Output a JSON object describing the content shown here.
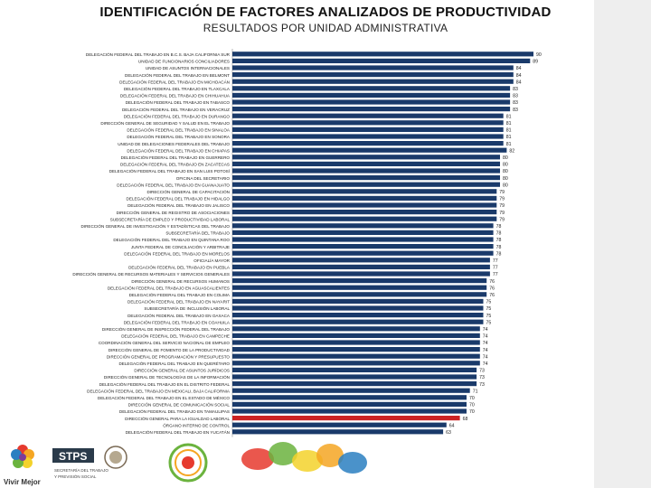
{
  "header": {
    "title": "IDENTIFICACIÓN DE FACTORES ANALIZADOS DE PRODUCTIVIDAD",
    "subtitle": "RESULTADOS POR UNIDAD ADMINISTRATIVA"
  },
  "colors": {
    "bar": "#1a3a6a",
    "bar_highlight": "#cc2222",
    "side_strip": "#eeeeee"
  },
  "chart_data": {
    "type": "bar",
    "orientation": "horizontal",
    "title": "RESULTADOS POR UNIDAD ADMINISTRATIVA",
    "categories": [
      "DELEGACIÓN FEDERAL DEL TRABAJO EN B.C.S. BAJA CALIFORNIA SUR",
      "UNIDAD DE FUNCIONARIOS CONCILIADORES",
      "UNIDAD DE ASUNTOS INTERNACIONALES",
      "DELEGACIÓN FEDERAL DEL TRABAJO EN BELMONT",
      "DELEGACIÓN FEDERAL DEL TRABAJO EN MICHOACÁN",
      "DELEGACIÓN FEDERAL DEL TRABAJO EN TLAXCALA",
      "DELEGACIÓN FEDERAL DEL TRABAJO EN CHIHUAHUA",
      "DELEGACIÓN FEDERAL DEL TRABAJO EN TABASCO",
      "DELEGACIÓN FEDERAL DEL TRABAJO EN VERACRUZ",
      "DELEGACIÓN FEDERAL DEL TRABAJO EN DURANGO",
      "DIRECCIÓN GENERAL DE SEGURIDAD Y SALUD EN EL TRABAJO",
      "DELEGACIÓN FEDERAL DEL TRABAJO EN SINALOA",
      "DELEGACIÓN FEDERAL DEL TRABAJO EN SONORA",
      "UNIDAD DE DELEGACIONES FEDERALES DEL TRABAJO",
      "DELEGACIÓN FEDERAL DEL TRABAJO EN CHIAPAS",
      "DELEGACIÓN FEDERAL DEL TRABAJO EN GUERRERO",
      "DELEGACIÓN FEDERAL DEL TRABAJO EN ZACATECAS",
      "DELEGACIÓN FEDERAL DEL TRABAJO EN SAN LUIS POTOSÍ",
      "OFICINA DEL SECRETARIO",
      "DELEGACIÓN FEDERAL DEL TRABAJO EN GUANAJUATO",
      "DIRECCIÓN GENERAL DE CAPACITACIÓN",
      "DELEGACIÓN FEDERAL DEL TRABAJO EN HIDALGO",
      "DELEGACIÓN FEDERAL DEL TRABAJO EN JALISCO",
      "DIRECCIÓN GENERAL DE REGISTRO DE ASOCIACIONES",
      "SUBSECRETARÍA DE EMPLEO Y PRODUCTIVIDAD LABORAL",
      "DIRECCIÓN GENERAL DE INVESTIGACIÓN Y ESTADÍSTICAS DEL TRABAJO",
      "SUBSECRETARÍA DEL TRABAJO",
      "DELEGACIÓN FEDERAL DEL TRABAJO EN QUINTANA ROO",
      "JUNTA FEDERAL DE CONCILIACIÓN Y ARBITRAJE",
      "DELEGACIÓN FEDERAL DEL TRABAJO EN MORELOS",
      "OFICIALÍA MAYOR",
      "DELEGACIÓN FEDERAL DEL TRABAJO EN PUEBLA",
      "DIRECCIÓN GENERAL DE RECURSOS MATERIALES Y SERVICIOS GENERALES",
      "DIRECCIÓN GENERAL DE RECURSOS HUMANOS",
      "DELEGACIÓN FEDERAL DEL TRABAJO EN AGUASCALIENTES",
      "DELEGACIÓN FEDERAL DEL TRABAJO EN COLIMA",
      "DELEGACIÓN FEDERAL DEL TRABAJO EN NAYARIT",
      "SUBSECRETARÍA DE INCLUSIÓN LABORAL",
      "DELEGACIÓN FEDERAL DEL TRABAJO EN OAXACA",
      "DELEGACIÓN FEDERAL DEL TRABAJO EN COAHUILA",
      "DIRECCIÓN GENERAL DE INSPECCIÓN FEDERAL DEL TRABAJO",
      "DELEGACIÓN FEDERAL DEL TRABAJO EN CAMPECHE",
      "COORDINACIÓN GENERAL DEL SERVICIO NACIONAL DE EMPLEO",
      "DIRECCIÓN GENERAL DE FOMENTO DE LA PRODUCTIVIDAD",
      "DIRECCIÓN GENERAL DE PROGRAMACIÓN Y PRESUPUESTO",
      "DELEGACIÓN FEDERAL DEL TRABAJO EN QUERÉTARO",
      "DIRECCIÓN GENERAL DE ASUNTOS JURÍDICOS",
      "DIRECCIÓN GENERAL DE TECNOLOGÍAS DE LA INFORMACIÓN",
      "DELEGACIÓN FEDERAL DEL TRABAJO EN EL DISTRITO FEDERAL",
      "DELEGACIÓN FEDERAL DEL TRABAJO EN MEXICALI, BAJA CALIFORNIA",
      "DELEGACIÓN FEDERAL DEL TRABAJO EN EL ESTADO DE MÉXICO",
      "DIRECCIÓN GENERAL DE COMUNICACIÓN SOCIAL",
      "DELEGACIÓN FEDERAL DEL TRABAJO EN TAMAULIPAS",
      "DIRECCIÓN GENERAL PARA LA IGUALDAD LABORAL",
      "ÓRGANO INTERNO DE CONTROL",
      "DELEGACIÓN FEDERAL DEL TRABAJO EN YUCATÁN"
    ],
    "values": [
      90,
      89,
      84,
      84,
      84,
      83,
      83,
      83,
      83,
      81,
      81,
      81,
      81,
      81,
      82,
      80,
      80,
      80,
      80,
      80,
      79,
      79,
      79,
      79,
      79,
      78,
      78,
      78,
      78,
      78,
      77,
      77,
      77,
      76,
      76,
      76,
      75,
      75,
      75,
      75,
      74,
      74,
      74,
      74,
      74,
      74,
      73,
      73,
      73,
      71,
      70,
      70,
      70,
      68,
      64,
      63
    ],
    "highlight_index": 53,
    "xlabel": "",
    "ylabel": "",
    "xlim": [
      0,
      90
    ],
    "grid": false,
    "legend": "none"
  },
  "footer": {
    "vivir_mejor": "Vivir Mejor",
    "stps": "STPS",
    "stps_sub": "SECRETARÍA DEL TRABAJO Y PREVISIÓN SOCIAL"
  }
}
